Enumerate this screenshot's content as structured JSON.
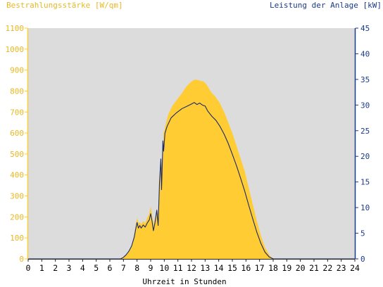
{
  "chart_data": {
    "type": "area",
    "left_axis_title": "Bestrahlungsstärke [W/qm]",
    "right_axis_title": "Leistung der Anlage [kW]",
    "xlabel": "Uhrzeit in Stunden",
    "x_ticks": [
      "0",
      "1",
      "2",
      "3",
      "4",
      "5",
      "6",
      "7",
      "8",
      "9",
      "10",
      "11",
      "12",
      "13",
      "14",
      "15",
      "16",
      "17",
      "18",
      "19",
      "20",
      "21",
      "22",
      "23",
      "24"
    ],
    "y_left_ticks": [
      "0",
      "100",
      "200",
      "300",
      "400",
      "500",
      "600",
      "700",
      "800",
      "900",
      "1000",
      "1100"
    ],
    "y_right_ticks": [
      "0",
      "5",
      "10",
      "15",
      "20",
      "25",
      "30",
      "35",
      "40",
      "45"
    ],
    "xlim": [
      0,
      24
    ],
    "ylim_left": [
      0,
      1100
    ],
    "ylim_right": [
      0,
      45
    ],
    "grid": false,
    "colors": {
      "plot_bg": "#dcdcdc",
      "irradiance": "#ffcc33",
      "power": "#1a2a6c",
      "left_axis": "#ffcc33",
      "right_axis": "#1a3a8a",
      "label_left": "#e8b820",
      "label_right": "#1a3a8a"
    },
    "series": [
      {
        "name": "Bestrahlungsstärke [W/qm]",
        "axis": "left",
        "type": "area",
        "points": [
          [
            0,
            0
          ],
          [
            6.7,
            0
          ],
          [
            6.9,
            5
          ],
          [
            7.1,
            12
          ],
          [
            7.3,
            25
          ],
          [
            7.5,
            45
          ],
          [
            7.65,
            70
          ],
          [
            7.8,
            120
          ],
          [
            7.9,
            160
          ],
          [
            8.0,
            195
          ],
          [
            8.1,
            170
          ],
          [
            8.2,
            175
          ],
          [
            8.3,
            165
          ],
          [
            8.45,
            180
          ],
          [
            8.6,
            170
          ],
          [
            8.75,
            195
          ],
          [
            8.9,
            215
          ],
          [
            9.0,
            250
          ],
          [
            9.1,
            210
          ],
          [
            9.2,
            165
          ],
          [
            9.3,
            185
          ],
          [
            9.45,
            240
          ],
          [
            9.55,
            215
          ],
          [
            9.65,
            380
          ],
          [
            9.75,
            480
          ],
          [
            9.85,
            420
          ],
          [
            9.95,
            600
          ],
          [
            10.1,
            640
          ],
          [
            10.3,
            690
          ],
          [
            10.6,
            730
          ],
          [
            11.0,
            765
          ],
          [
            11.3,
            790
          ],
          [
            11.6,
            820
          ],
          [
            11.9,
            840
          ],
          [
            12.1,
            850
          ],
          [
            12.3,
            855
          ],
          [
            12.5,
            852
          ],
          [
            12.7,
            848
          ],
          [
            12.9,
            845
          ],
          [
            13.1,
            832
          ],
          [
            13.3,
            810
          ],
          [
            13.5,
            790
          ],
          [
            13.7,
            778
          ],
          [
            13.9,
            760
          ],
          [
            14.1,
            740
          ],
          [
            14.4,
            700
          ],
          [
            14.7,
            650
          ],
          [
            15.0,
            600
          ],
          [
            15.3,
            540
          ],
          [
            15.6,
            480
          ],
          [
            15.9,
            420
          ],
          [
            16.2,
            340
          ],
          [
            16.5,
            260
          ],
          [
            16.8,
            180
          ],
          [
            17.1,
            110
          ],
          [
            17.4,
            55
          ],
          [
            17.7,
            20
          ],
          [
            17.9,
            5
          ],
          [
            18.1,
            0
          ],
          [
            24,
            0
          ]
        ]
      },
      {
        "name": "Leistung der Anlage [kW]",
        "axis": "right",
        "type": "line",
        "points": [
          [
            0,
            0
          ],
          [
            6.8,
            0
          ],
          [
            7.0,
            0.3
          ],
          [
            7.2,
            0.8
          ],
          [
            7.4,
            1.5
          ],
          [
            7.6,
            2.5
          ],
          [
            7.8,
            4.3
          ],
          [
            7.9,
            5.8
          ],
          [
            8.0,
            7.1
          ],
          [
            8.1,
            6.0
          ],
          [
            8.2,
            6.5
          ],
          [
            8.3,
            6.0
          ],
          [
            8.45,
            6.6
          ],
          [
            8.6,
            6.2
          ],
          [
            8.75,
            7.0
          ],
          [
            8.9,
            7.6
          ],
          [
            9.0,
            8.8
          ],
          [
            9.1,
            7.4
          ],
          [
            9.2,
            5.5
          ],
          [
            9.3,
            6.8
          ],
          [
            9.45,
            9.5
          ],
          [
            9.55,
            6.5
          ],
          [
            9.65,
            15.0
          ],
          [
            9.75,
            19.5
          ],
          [
            9.8,
            13.5
          ],
          [
            9.9,
            23.0
          ],
          [
            9.95,
            21.0
          ],
          [
            10.05,
            24.5
          ],
          [
            10.2,
            25.8
          ],
          [
            10.5,
            27.5
          ],
          [
            10.9,
            28.5
          ],
          [
            11.3,
            29.3
          ],
          [
            11.7,
            29.8
          ],
          [
            12.0,
            30.2
          ],
          [
            12.2,
            30.5
          ],
          [
            12.4,
            30.1
          ],
          [
            12.6,
            30.4
          ],
          [
            12.8,
            30.0
          ],
          [
            13.0,
            29.8
          ],
          [
            13.2,
            28.8
          ],
          [
            13.5,
            27.8
          ],
          [
            13.8,
            27.0
          ],
          [
            14.1,
            25.8
          ],
          [
            14.4,
            24.3
          ],
          [
            14.7,
            22.5
          ],
          [
            15.0,
            20.4
          ],
          [
            15.3,
            18.2
          ],
          [
            15.6,
            15.8
          ],
          [
            15.9,
            13.3
          ],
          [
            16.2,
            10.5
          ],
          [
            16.5,
            7.8
          ],
          [
            16.8,
            5.2
          ],
          [
            17.1,
            3.0
          ],
          [
            17.4,
            1.3
          ],
          [
            17.7,
            0.4
          ],
          [
            18.0,
            0
          ],
          [
            24,
            0
          ]
        ]
      }
    ]
  }
}
